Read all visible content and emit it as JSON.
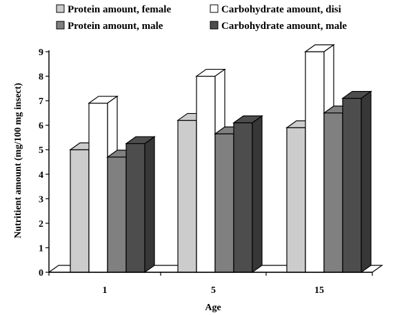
{
  "chart_data": {
    "type": "bar",
    "title": "",
    "xlabel": "Age",
    "ylabel": "Nutritient amount (mg/100 mg insect)",
    "categories": [
      "1",
      "5",
      "15"
    ],
    "ylim": [
      0,
      9
    ],
    "yticks": [
      "0",
      "1",
      "2",
      "3",
      "4",
      "5",
      "6",
      "7",
      "8",
      "9"
    ],
    "grid": false,
    "legend_position": "top",
    "series": [
      {
        "name": "Protein amount, female",
        "color": "#cccccc",
        "values": [
          5.0,
          6.2,
          5.9
        ]
      },
      {
        "name": "Protein amount, male",
        "color": "#808080",
        "values": [
          4.7,
          5.65,
          6.5
        ]
      },
      {
        "name": "Carbohydrate amount, disi",
        "color": "#ffffff",
        "values": [
          6.9,
          8.0,
          9.0
        ]
      },
      {
        "name": "Carbohydrate amount, male",
        "color": "#4d4d4d",
        "values": [
          5.25,
          6.1,
          7.1
        ]
      }
    ],
    "bar_order": [
      0,
      2,
      1,
      3
    ]
  }
}
